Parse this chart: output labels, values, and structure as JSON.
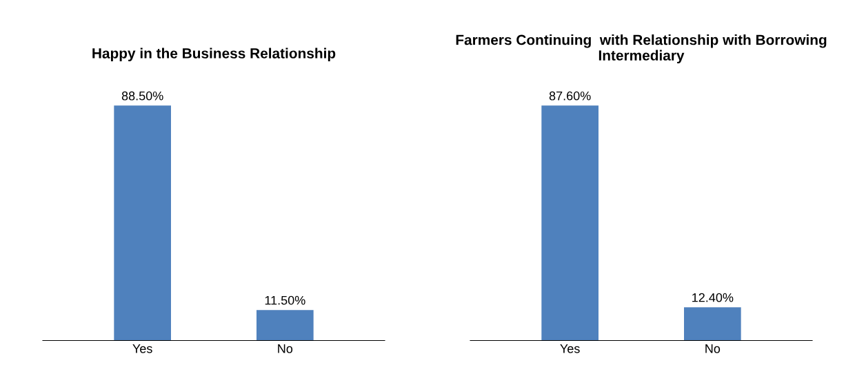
{
  "chart_data": [
    {
      "type": "bar",
      "title": "Happy in the Business Relationship",
      "categories": [
        "Yes",
        "No"
      ],
      "values": [
        88.5,
        11.5
      ],
      "color": "#4f81bd",
      "value_labels": [
        "88.50%",
        "11.50%"
      ],
      "grid": false,
      "legend": false
    },
    {
      "type": "bar",
      "title": "Farmers Continuing  with Relationship with Borrowing Intermediary",
      "categories": [
        "Yes",
        "No"
      ],
      "values": [
        87.6,
        12.4
      ],
      "color": "#4f81bd",
      "value_labels": [
        "87.60%",
        "12.40%"
      ],
      "grid": false,
      "legend": false
    }
  ]
}
